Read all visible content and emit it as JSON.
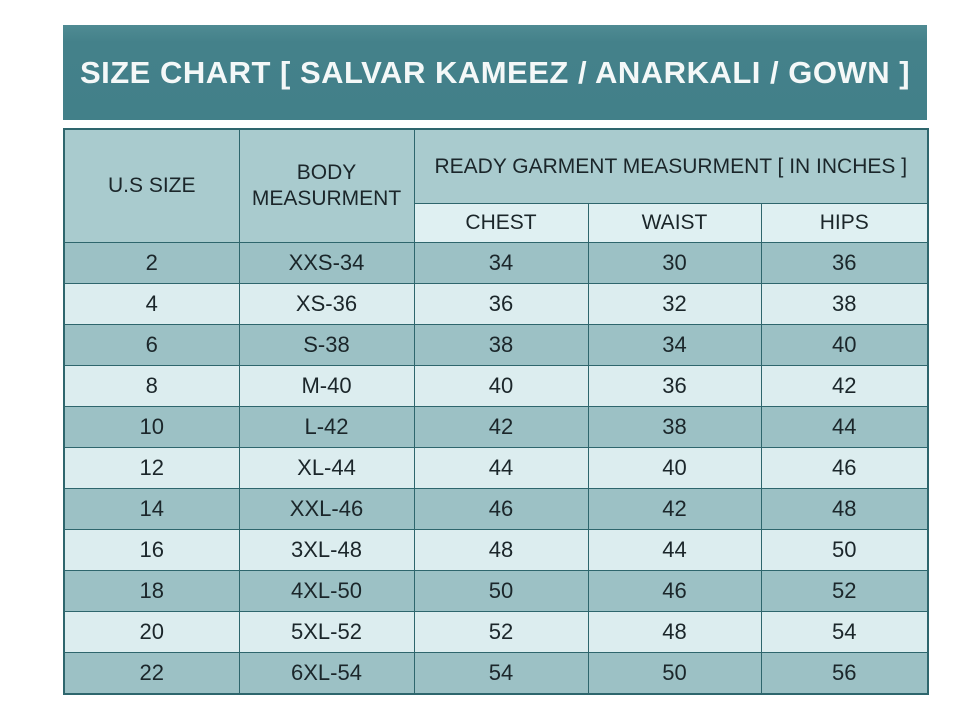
{
  "title": {
    "text": "SIZE CHART [ SALVAR KAMEEZ / ANARKALI / GOWN ]"
  },
  "header": {
    "us_size": "U.S SIZE",
    "body_measurment": "BODY MEASURMENT",
    "ready_garment_group": "READY GARMENT MEASURMENT [ IN INCHES ]",
    "chest": "CHEST",
    "waist": "WAIST",
    "hips": "HIPS"
  },
  "colors": {
    "title_bg": "#428089",
    "title_text": "#f4f8f8",
    "header_bg": "#a9cbce",
    "subheader_bg": "#dff0f2",
    "row_dark": "#9cc1c5",
    "row_light": "#dcedef",
    "border": "#2e666d",
    "text": "#1b262a",
    "page_bg": "#ffffff"
  },
  "chart_data": {
    "type": "table",
    "title": "SIZE CHART [ SALVAR KAMEEZ / ANARKALI / GOWN ]",
    "column_group": {
      "label": "READY GARMENT MEASURMENT [ IN INCHES ]",
      "spans": [
        "CHEST",
        "WAIST",
        "HIPS"
      ]
    },
    "columns": [
      "U.S SIZE",
      "BODY MEASURMENT",
      "CHEST",
      "WAIST",
      "HIPS"
    ],
    "rows": [
      [
        "2",
        "XXS-34",
        "34",
        "30",
        "36"
      ],
      [
        "4",
        "XS-36",
        "36",
        "32",
        "38"
      ],
      [
        "6",
        "S-38",
        "38",
        "34",
        "40"
      ],
      [
        "8",
        "M-40",
        "40",
        "36",
        "42"
      ],
      [
        "10",
        "L-42",
        "42",
        "38",
        "44"
      ],
      [
        "12",
        "XL-44",
        "44",
        "40",
        "46"
      ],
      [
        "14",
        "XXL-46",
        "46",
        "42",
        "48"
      ],
      [
        "16",
        "3XL-48",
        "48",
        "44",
        "50"
      ],
      [
        "18",
        "4XL-50",
        "50",
        "46",
        "52"
      ],
      [
        "20",
        "5XL-52",
        "52",
        "48",
        "54"
      ],
      [
        "22",
        "6XL-54",
        "54",
        "50",
        "56"
      ]
    ],
    "layout": {
      "zebra_striping": true,
      "first_data_row_shade": "dark"
    }
  }
}
